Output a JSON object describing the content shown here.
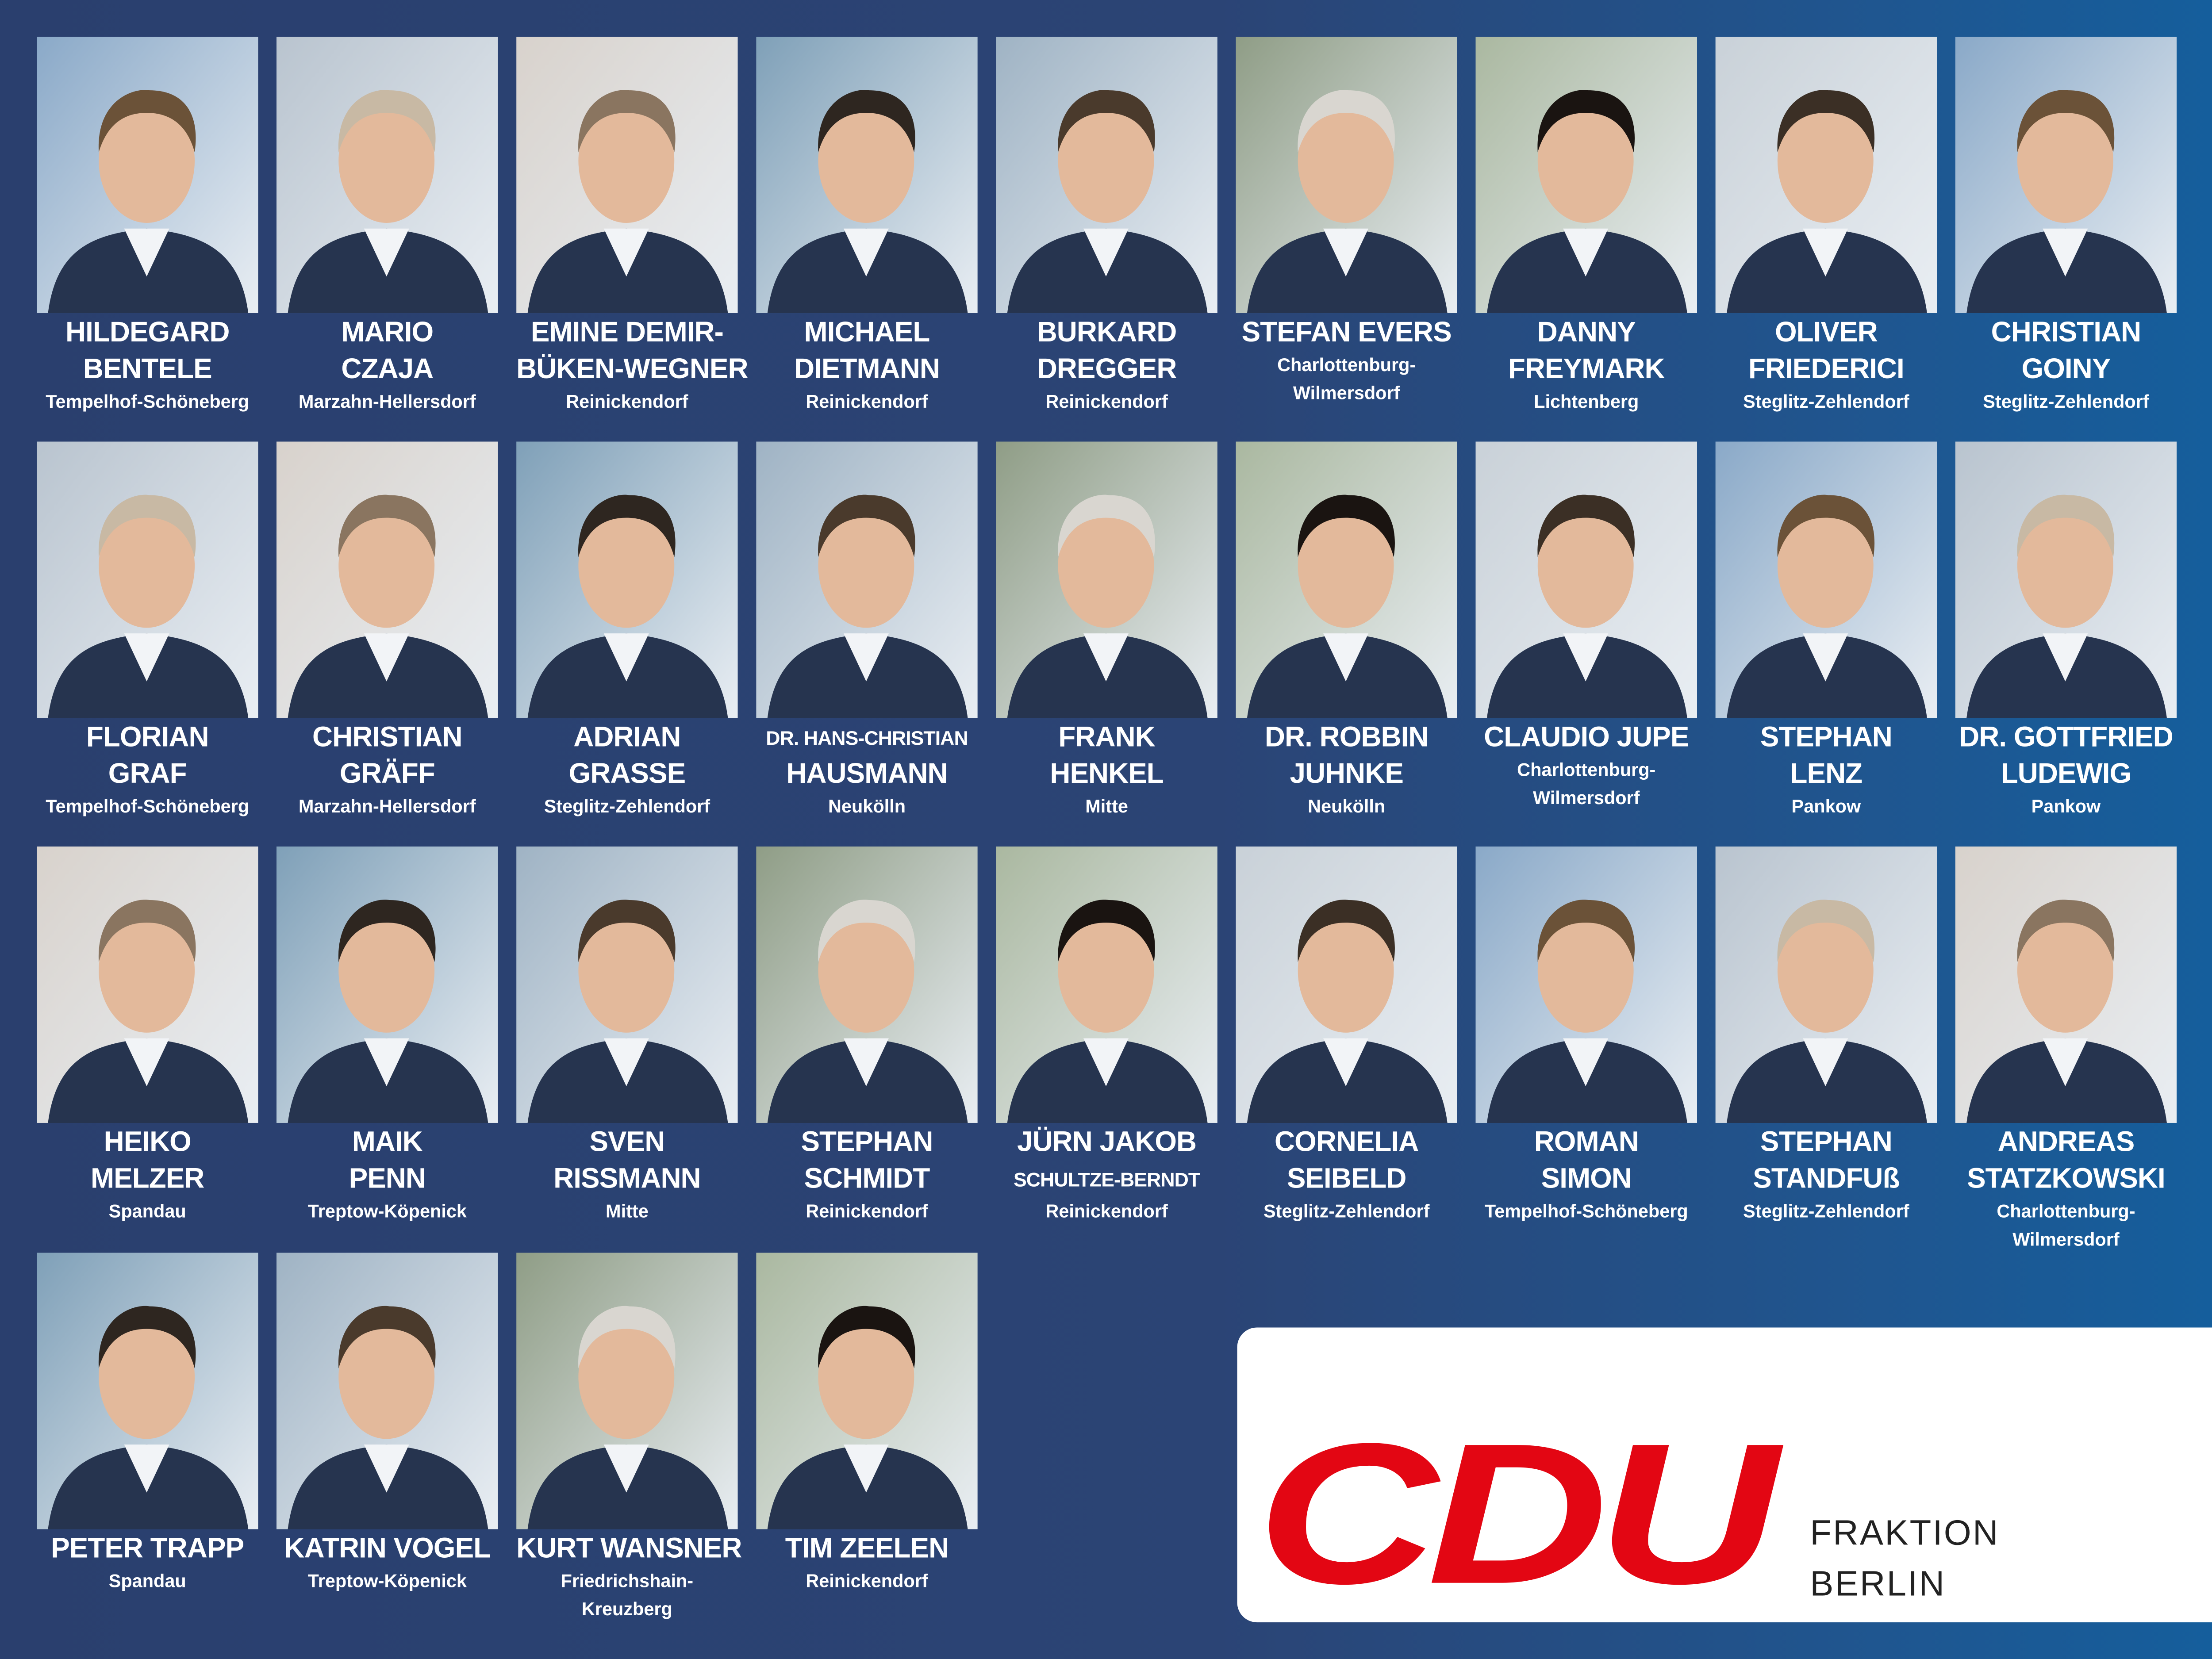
{
  "members": [
    {
      "name": [
        "HILDEGARD",
        "BENTELE"
      ],
      "district": [
        "Tempelhof-Schöneberg"
      ]
    },
    {
      "name": [
        "MARIO",
        "CZAJA"
      ],
      "district": [
        "Marzahn-Hellersdorf"
      ]
    },
    {
      "name": [
        "EMINE DEMIR-",
        "BÜKEN-WEGNER"
      ],
      "district": [
        "Reinickendorf"
      ]
    },
    {
      "name": [
        "MICHAEL",
        "DIETMANN"
      ],
      "district": [
        "Reinickendorf"
      ]
    },
    {
      "name": [
        "BURKARD",
        "DREGGER"
      ],
      "district": [
        "Reinickendorf"
      ]
    },
    {
      "name": [
        "STEFAN EVERS"
      ],
      "district": [
        "Charlottenburg-",
        "Wilmersdorf"
      ]
    },
    {
      "name": [
        "DANNY",
        "FREYMARK"
      ],
      "district": [
        "Lichtenberg"
      ]
    },
    {
      "name": [
        "OLIVER",
        "FRIEDERICI"
      ],
      "district": [
        "Steglitz-Zehlendorf"
      ]
    },
    {
      "name": [
        "CHRISTIAN",
        "GOINY"
      ],
      "district": [
        "Steglitz-Zehlendorf"
      ]
    },
    {
      "name": [
        "FLORIAN",
        "GRAF"
      ],
      "district": [
        "Tempelhof-Schöneberg"
      ]
    },
    {
      "name": [
        "CHRISTIAN",
        "GRÄFF"
      ],
      "district": [
        "Marzahn-Hellersdorf"
      ]
    },
    {
      "name": [
        "ADRIAN",
        "GRASSE"
      ],
      "district": [
        "Steglitz-Zehlendorf"
      ]
    },
    {
      "name": [
        "DR. HANS-CHRISTIAN",
        "HAUSMANN"
      ],
      "district": [
        "Neukölln"
      ]
    },
    {
      "name": [
        "FRANK",
        "HENKEL"
      ],
      "district": [
        "Mitte"
      ]
    },
    {
      "name": [
        "DR. ROBBIN",
        "JUHNKE"
      ],
      "district": [
        "Neukölln"
      ]
    },
    {
      "name": [
        "CLAUDIO JUPE"
      ],
      "district": [
        "Charlottenburg-",
        "Wilmersdorf"
      ]
    },
    {
      "name": [
        "STEPHAN",
        "LENZ"
      ],
      "district": [
        "Pankow"
      ]
    },
    {
      "name": [
        "DR. GOTTFRIED",
        "LUDEWIG"
      ],
      "district": [
        "Pankow"
      ]
    },
    {
      "name": [
        "HEIKO",
        "MELZER"
      ],
      "district": [
        "Spandau"
      ]
    },
    {
      "name": [
        "MAIK",
        "PENN"
      ],
      "district": [
        "Treptow-Köpenick"
      ]
    },
    {
      "name": [
        "SVEN",
        "RISSMANN"
      ],
      "district": [
        "Mitte"
      ]
    },
    {
      "name": [
        "STEPHAN",
        "SCHMIDT"
      ],
      "district": [
        "Reinickendorf"
      ]
    },
    {
      "name": [
        "JÜRN JAKOB",
        "SCHULTZE-BERNDT"
      ],
      "district": [
        "Reinickendorf"
      ]
    },
    {
      "name": [
        "CORNELIA",
        "SEIBELD"
      ],
      "district": [
        "Steglitz-Zehlendorf"
      ]
    },
    {
      "name": [
        "ROMAN",
        "SIMON"
      ],
      "district": [
        "Tempelhof-Schöneberg"
      ]
    },
    {
      "name": [
        "STEPHAN",
        "STANDFUß"
      ],
      "district": [
        "Steglitz-Zehlendorf"
      ]
    },
    {
      "name": [
        "ANDREAS",
        "STATZKOWSKI"
      ],
      "district": [
        "Charlottenburg-",
        "Wilmersdorf"
      ]
    },
    {
      "name": [
        "PETER TRAPP"
      ],
      "district": [
        "Spandau"
      ]
    },
    {
      "name": [
        "KATRIN VOGEL"
      ],
      "district": [
        "Treptow-Köpenick"
      ]
    },
    {
      "name": [
        "KURT WANSNER"
      ],
      "district": [
        "Friedrichshain-",
        "Kreuzberg"
      ]
    },
    {
      "name": [
        "TIM ZEELEN"
      ],
      "district": [
        "Reinickendorf"
      ]
    }
  ],
  "logo": {
    "mark": "CDU",
    "lines": [
      "FRAKTION",
      "BERLIN"
    ]
  }
}
